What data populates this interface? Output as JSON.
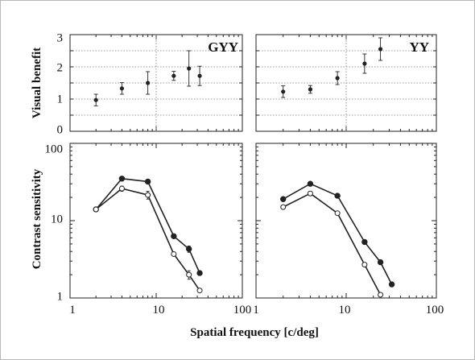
{
  "chart_data": [
    {
      "id": "benefit-gyy",
      "type": "scatter",
      "ylabel": "Visual benefit",
      "panel_label": "GYY",
      "x_scale": "log",
      "xlim": [
        1,
        100
      ],
      "ylim": [
        0,
        3
      ],
      "yticks": [
        "0",
        "1",
        "2",
        "3"
      ],
      "grid": true,
      "points": [
        {
          "x": 2,
          "y": 0.97,
          "err": 0.18
        },
        {
          "x": 4,
          "y": 1.33,
          "err": 0.18
        },
        {
          "x": 8,
          "y": 1.5,
          "err": 0.35
        },
        {
          "x": 16,
          "y": 1.72,
          "err": 0.14
        },
        {
          "x": 24,
          "y": 1.95,
          "err": 0.55
        },
        {
          "x": 32,
          "y": 1.72,
          "err": 0.3
        }
      ]
    },
    {
      "id": "benefit-yy",
      "type": "scatter",
      "panel_label": "YY",
      "x_scale": "log",
      "xlim": [
        1,
        100
      ],
      "ylim": [
        0,
        3
      ],
      "grid": true,
      "points": [
        {
          "x": 2,
          "y": 1.23,
          "err": 0.18
        },
        {
          "x": 4,
          "y": 1.3,
          "err": 0.12
        },
        {
          "x": 8,
          "y": 1.65,
          "err": 0.2
        },
        {
          "x": 16,
          "y": 2.1,
          "err": 0.3
        },
        {
          "x": 24,
          "y": 2.55,
          "err": 0.35
        }
      ]
    },
    {
      "id": "csf-gyy",
      "type": "line",
      "ylabel": "Contrast sensitivity",
      "x_scale": "log",
      "y_scale": "log",
      "xlim": [
        1,
        100
      ],
      "ylim": [
        1,
        100
      ],
      "xticks": [
        "1",
        "10",
        "100"
      ],
      "yticks": [
        "1",
        "10",
        "100"
      ],
      "series": [
        {
          "marker": "filled",
          "x": [
            2,
            4,
            8,
            16,
            24,
            32
          ],
          "y": [
            14,
            35,
            32,
            6.3,
            4.3,
            2.1
          ],
          "err": [
            0,
            0,
            0,
            0,
            0.4,
            0
          ]
        },
        {
          "marker": "open",
          "x": [
            2,
            4,
            8,
            16,
            24,
            32
          ],
          "y": [
            14,
            26,
            21.5,
            3.7,
            2.0,
            1.25
          ],
          "err": [
            0,
            2,
            2.5,
            0,
            0.25,
            0
          ]
        }
      ]
    },
    {
      "id": "csf-yy",
      "type": "line",
      "x_scale": "log",
      "y_scale": "log",
      "xlim": [
        1,
        100
      ],
      "ylim": [
        1,
        100
      ],
      "xticks": [
        "10",
        "100"
      ],
      "series": [
        {
          "marker": "filled",
          "x": [
            2,
            4,
            8,
            16,
            24,
            32
          ],
          "y": [
            19,
            30,
            21,
            5.3,
            2.9,
            1.5
          ],
          "err": [
            0,
            2,
            0,
            0,
            0,
            0
          ]
        },
        {
          "marker": "open",
          "x": [
            2,
            4,
            8,
            16,
            24
          ],
          "y": [
            15,
            22.5,
            12.5,
            2.7,
            1.1
          ],
          "err": [
            0,
            1.5,
            0,
            0,
            0
          ]
        }
      ]
    }
  ],
  "xlabel": "Spatial frequency [c/deg]"
}
